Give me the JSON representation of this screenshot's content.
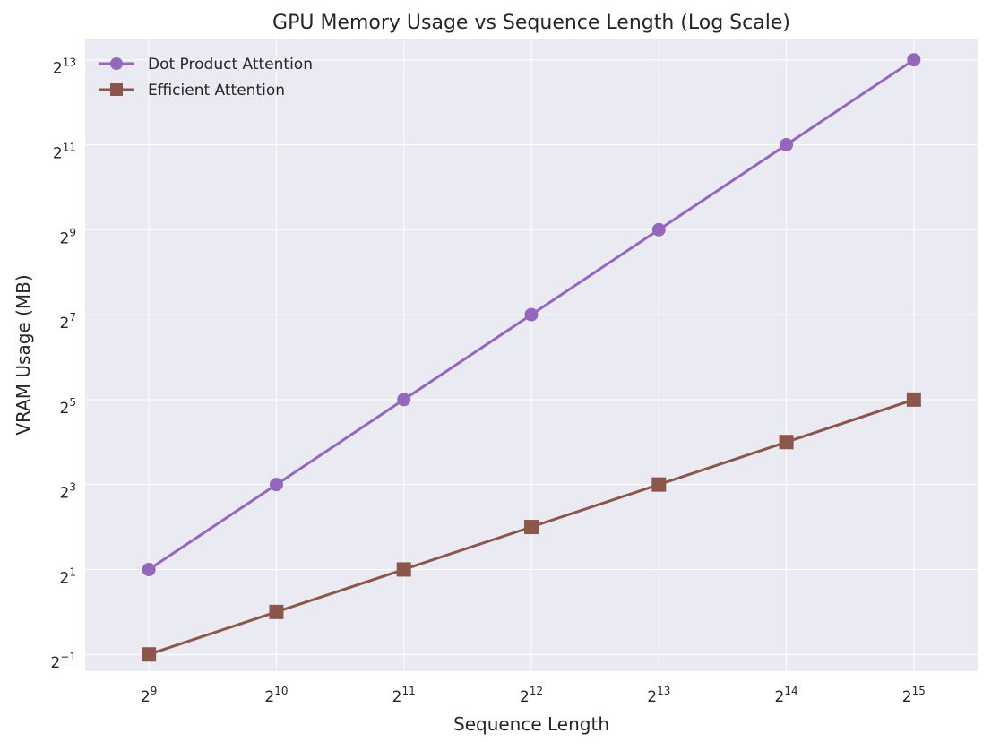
{
  "chart_data": {
    "type": "line",
    "title": "GPU Memory Usage vs Sequence Length (Log Scale)",
    "xlabel": "Sequence Length",
    "ylabel": "VRAM Usage (MB)",
    "xscale": "log2",
    "yscale": "log2",
    "xlim": [
      362,
      46341
    ],
    "ylim": [
      0.38,
      11585
    ],
    "grid": true,
    "legend_position": "top-left",
    "x": [
      512,
      1024,
      2048,
      4096,
      8192,
      16384,
      32768
    ],
    "x_ticks": [
      {
        "value": 512,
        "base": "2",
        "exp": "9"
      },
      {
        "value": 1024,
        "base": "2",
        "exp": "10"
      },
      {
        "value": 2048,
        "base": "2",
        "exp": "11"
      },
      {
        "value": 4096,
        "base": "2",
        "exp": "12"
      },
      {
        "value": 8192,
        "base": "2",
        "exp": "13"
      },
      {
        "value": 16384,
        "base": "2",
        "exp": "14"
      },
      {
        "value": 32768,
        "base": "2",
        "exp": "15"
      }
    ],
    "y_ticks": [
      {
        "value": 0.5,
        "base": "2",
        "exp": "−1"
      },
      {
        "value": 2,
        "base": "2",
        "exp": "1"
      },
      {
        "value": 8,
        "base": "2",
        "exp": "3"
      },
      {
        "value": 32,
        "base": "2",
        "exp": "5"
      },
      {
        "value": 128,
        "base": "2",
        "exp": "7"
      },
      {
        "value": 512,
        "base": "2",
        "exp": "9"
      },
      {
        "value": 2048,
        "base": "2",
        "exp": "11"
      },
      {
        "value": 8192,
        "base": "2",
        "exp": "13"
      }
    ],
    "series": [
      {
        "name": "Dot Product Attention",
        "marker": "circle",
        "color": "#9467bd",
        "values": [
          2,
          8,
          32,
          128,
          512,
          2048,
          8192
        ]
      },
      {
        "name": "Efficient Attention",
        "marker": "square",
        "color": "#8c564b",
        "values": [
          0.5,
          1,
          2,
          4,
          8,
          16,
          32
        ]
      }
    ]
  }
}
